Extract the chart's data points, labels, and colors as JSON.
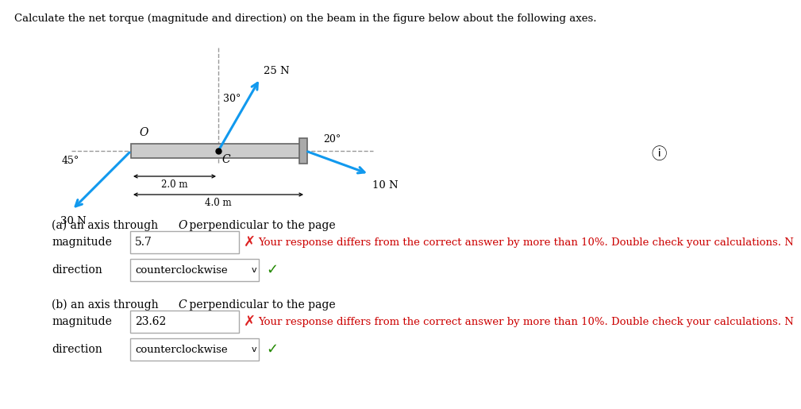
{
  "title": "Calculate the net torque (magnitude and direction) on the beam in the figure below about the following axes.",
  "bg_color": "#ffffff",
  "beam_color": "#cccccc",
  "beam_edge_color": "#666666",
  "arrow_color": "#1199ee",
  "dashed_line_color": "#999999",
  "text_color": "#000000",
  "red_color": "#cc0000",
  "green_color": "#228800",
  "mag_a_value": "5.7",
  "mag_b_value": "23.62",
  "error_msg": "Your response differs from the correct answer by more than 10%. Double check your calculations. N",
  "unit": "m",
  "dir_a": "counterclockwise",
  "dir_b": "counterclockwise",
  "info_symbol": "ⓘ"
}
